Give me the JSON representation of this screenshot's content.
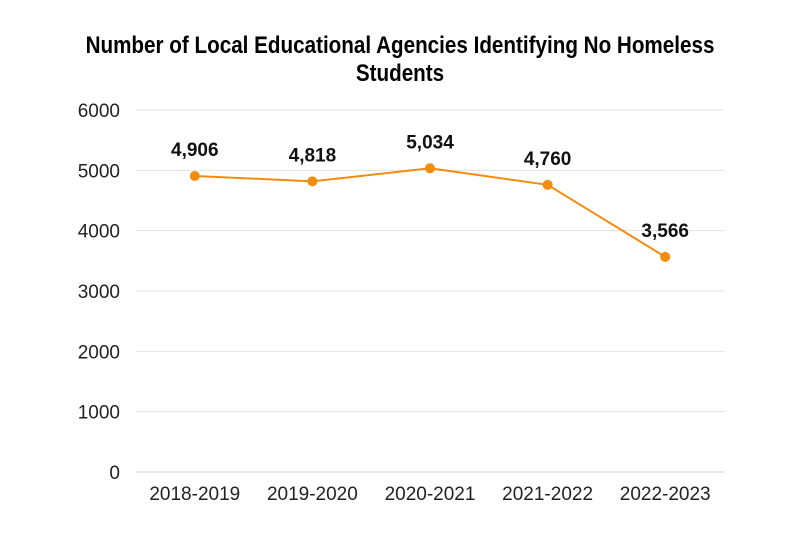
{
  "chart_data": {
    "type": "line",
    "title": "Number of Local Educational Agencies Identifying No Homeless Students",
    "xlabel": "",
    "ylabel": "",
    "categories": [
      "2018-2019",
      "2019-2020",
      "2020-2021",
      "2021-2022",
      "2022-2023"
    ],
    "series": [
      {
        "values": [
          4906,
          4818,
          5034,
          4760,
          3566
        ],
        "data_labels": [
          "4,906",
          "4,818",
          "5,034",
          "4,760",
          "3,566"
        ],
        "color": "#f28c0f"
      }
    ],
    "ylim": [
      0,
      6000
    ],
    "yticks": [
      "0",
      "1000",
      "2000",
      "3000",
      "4000",
      "5000",
      "6000"
    ],
    "grid": true,
    "legend": "none",
    "colors": {
      "line": "#f28c0f",
      "gridline": "#e3e3e3",
      "axis": "#cfcfcf"
    }
  }
}
